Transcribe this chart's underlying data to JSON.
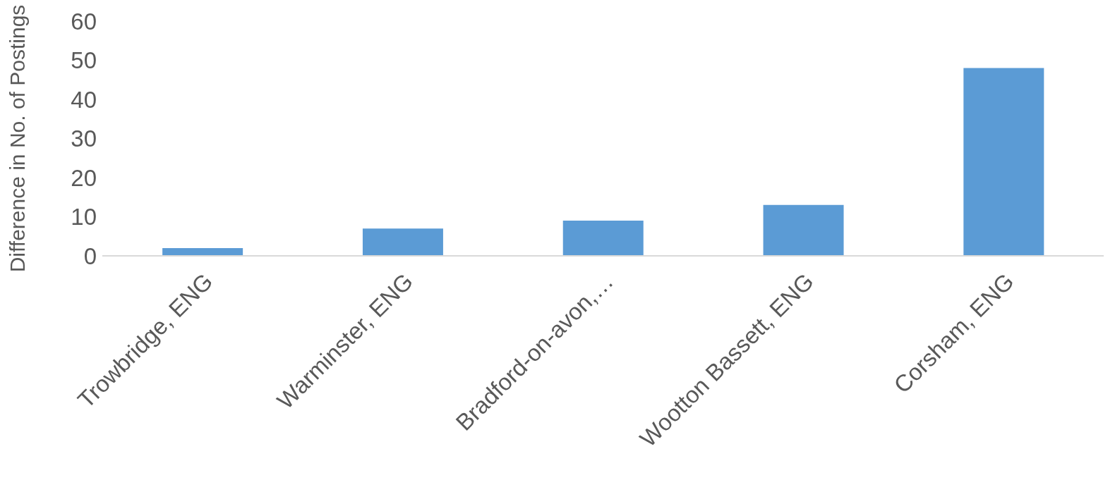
{
  "chart_data": {
    "type": "bar",
    "ylabel": "Difference in No. of Postings",
    "categories": [
      "Trowbridge, ENG",
      "Warminster, ENG",
      "Bradford-on-avon,…",
      "Wootton Bassett, ENG",
      "Corsham, ENG"
    ],
    "values": [
      2,
      7,
      9,
      13,
      48
    ],
    "color": "#5b9bd5",
    "ylim": [
      0,
      60
    ],
    "yticks": [
      0,
      10,
      20,
      30,
      40,
      50,
      60
    ],
    "grid": false,
    "legend": false
  }
}
